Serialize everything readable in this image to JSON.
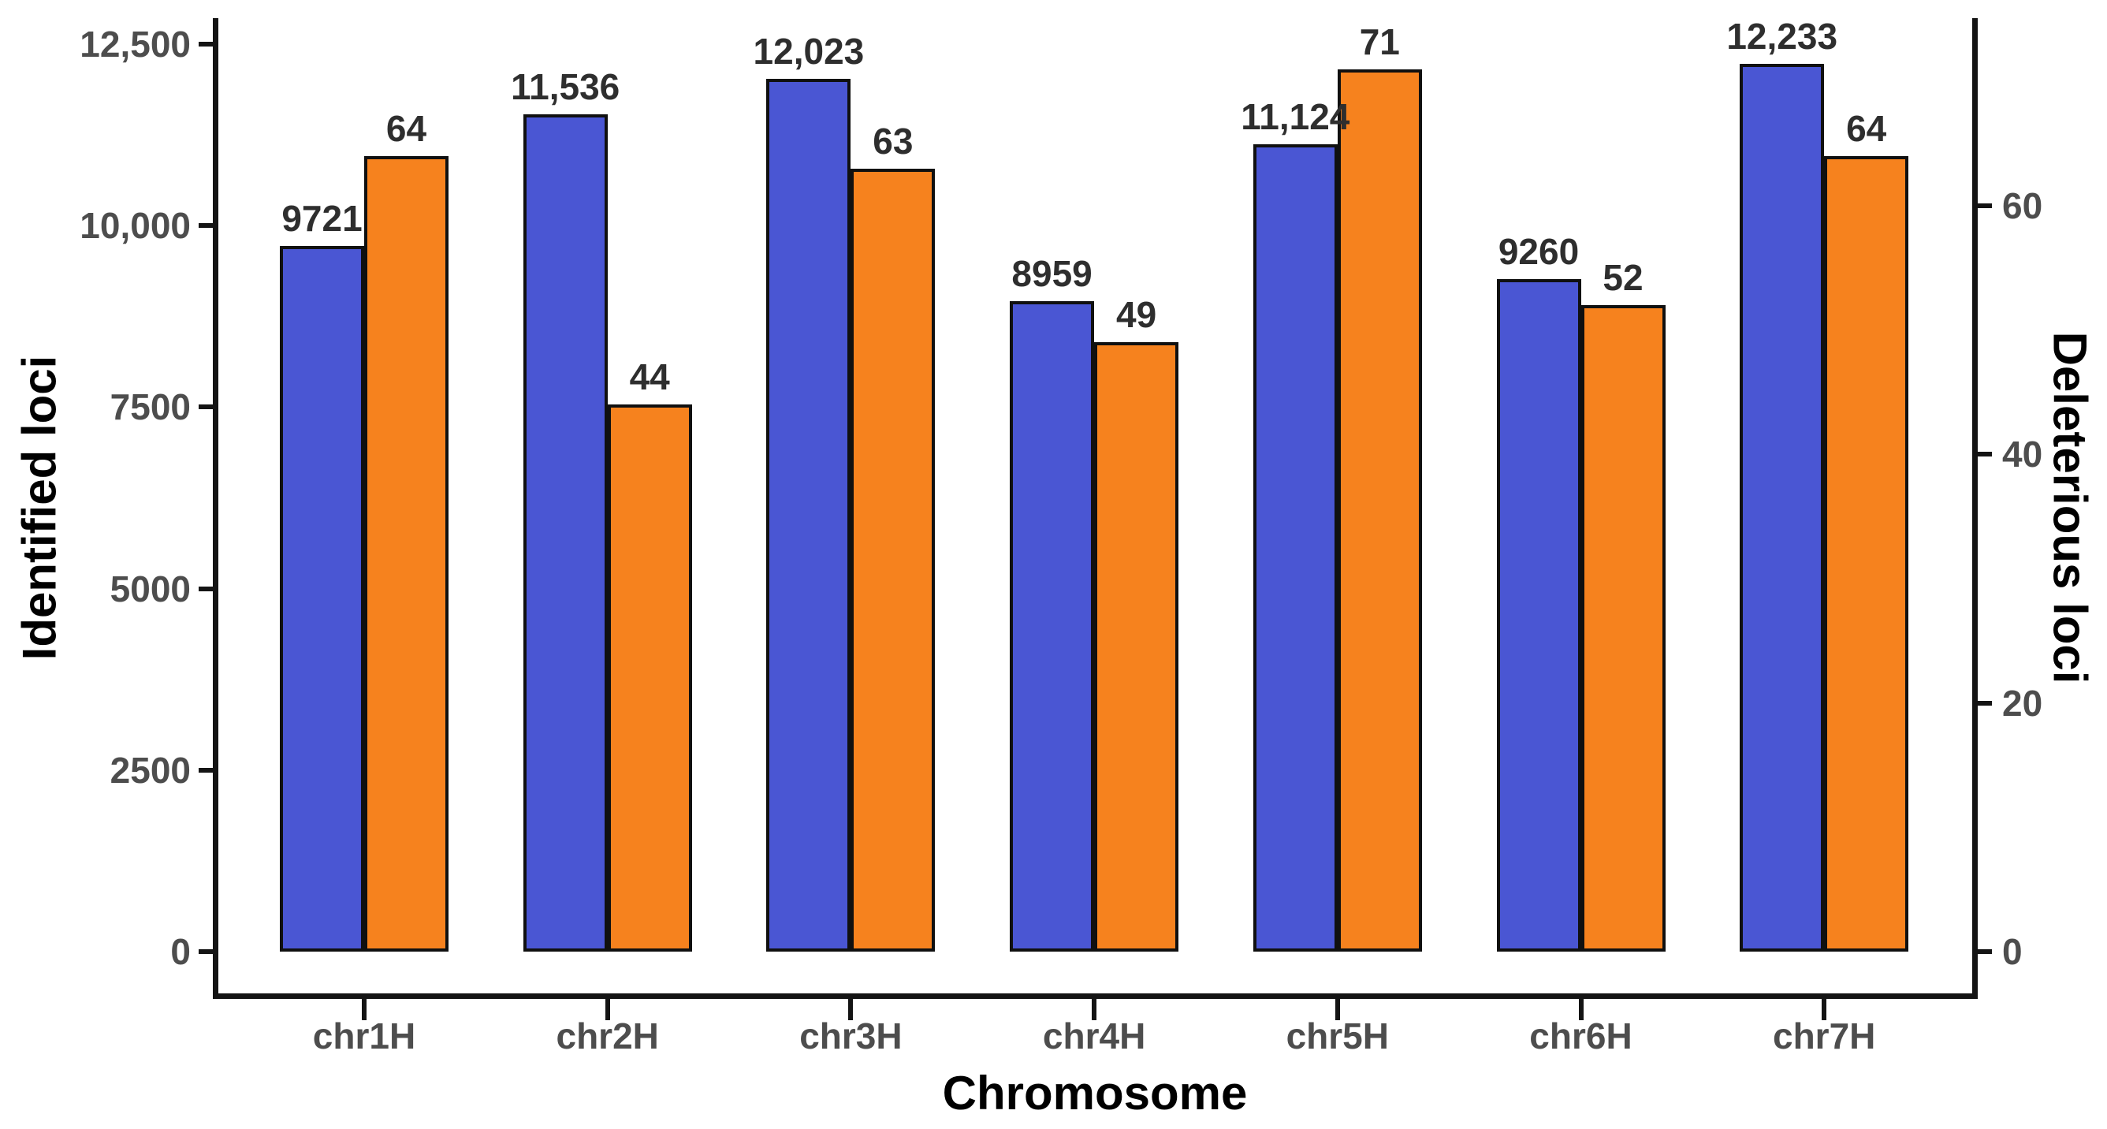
{
  "chart_data": {
    "type": "bar",
    "subtype": "grouped-dual-axis",
    "title": "",
    "xlabel": "Chromosome",
    "ylabel_left": "Identified loci",
    "ylabel_right": "Deleterious loci",
    "categories": [
      "chr1H",
      "chr2H",
      "chr3H",
      "chr4H",
      "chr5H",
      "chr6H",
      "chr7H"
    ],
    "series": [
      {
        "name": "Identified loci",
        "axis": "left",
        "color": "#4A56D3",
        "values": [
          9721,
          11536,
          12023,
          8959,
          11124,
          9260,
          12233
        ],
        "labels": [
          "9721",
          "11,536",
          "12,023",
          "8959",
          "11,124",
          "9260",
          "12,233"
        ]
      },
      {
        "name": "Deleterious loci",
        "axis": "right",
        "color": "#F6821E",
        "values": [
          64,
          44,
          63,
          49,
          71,
          52,
          64
        ],
        "labels": [
          "64",
          "44",
          "63",
          "49",
          "71",
          "52",
          "64"
        ]
      }
    ],
    "left_axis": {
      "min": 0,
      "max": 12500,
      "ticks": [
        0,
        2500,
        5000,
        7500,
        10000,
        12500
      ],
      "tick_labels": [
        "0",
        "2500",
        "5000",
        "7500",
        "10,000",
        "12,500"
      ]
    },
    "right_axis": {
      "min": 0,
      "max": 73,
      "ticks": [
        0,
        20,
        40,
        60
      ],
      "tick_labels": [
        "0",
        "20",
        "40",
        "60"
      ]
    },
    "grid": false,
    "legend_position": "none",
    "bar_outline_color": "#101010",
    "background_color": "#ffffff",
    "tick_label_color": "#4d4d4d",
    "value_label_color": "#2e2e2e",
    "axis_title_color": "#000000"
  }
}
